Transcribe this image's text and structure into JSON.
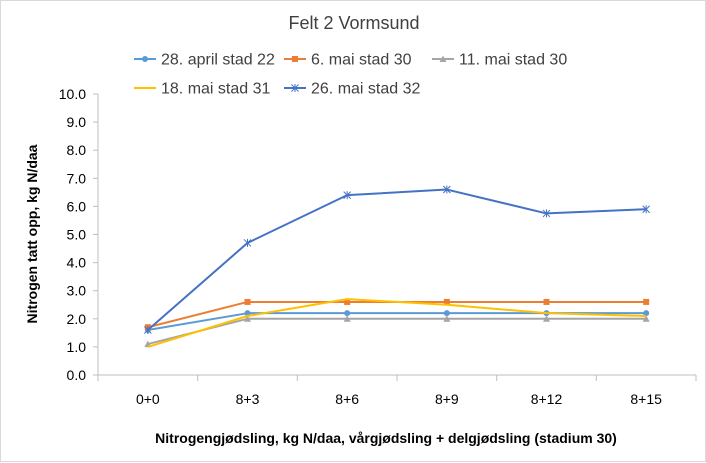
{
  "chart_data": {
    "type": "line",
    "title": "Felt 2 Vormsund",
    "xlabel": "Nitrogengjødsling, kg N/daa, vårgjødsling + delgjødsling (stadium 30)",
    "ylabel": "Nitrogen tatt opp, kg N/daa",
    "ylim": [
      0,
      10
    ],
    "y_ticks": [
      "0.0",
      "1.0",
      "2.0",
      "3.0",
      "4.0",
      "5.0",
      "6.0",
      "7.0",
      "8.0",
      "9.0",
      "10.0"
    ],
    "categories": [
      "0+0",
      "8+3",
      "8+6",
      "8+9",
      "8+12",
      "8+15"
    ],
    "grid": false,
    "legend_position": "top",
    "series": [
      {
        "name": "28. april stad 22",
        "color": "#5b9bd5",
        "marker": "circle",
        "values": [
          1.6,
          2.2,
          2.2,
          2.2,
          2.2,
          2.2
        ]
      },
      {
        "name": "6. mai stad 30",
        "color": "#ed7d31",
        "marker": "square",
        "values": [
          1.7,
          2.6,
          2.6,
          2.6,
          2.6,
          2.6
        ]
      },
      {
        "name": "11. mai stad 30",
        "color": "#a5a5a5",
        "marker": "triangle",
        "values": [
          1.1,
          2.0,
          2.0,
          2.0,
          2.0,
          2.0
        ]
      },
      {
        "name": "18. mai stad 31",
        "color": "#ffc000",
        "marker": "none",
        "values": [
          1.0,
          2.1,
          2.7,
          2.5,
          2.2,
          2.1
        ]
      },
      {
        "name": "26. mai stad 32",
        "color": "#4472c4",
        "marker": "star",
        "values": [
          1.6,
          4.7,
          6.4,
          6.6,
          5.75,
          5.9
        ]
      }
    ]
  }
}
